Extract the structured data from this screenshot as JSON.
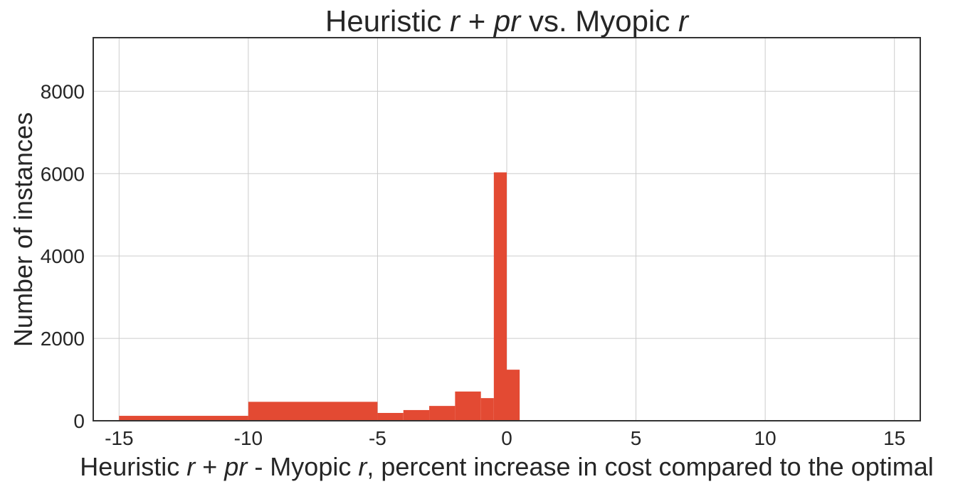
{
  "title": {
    "parts": [
      {
        "text": "Heuristic ",
        "math": false
      },
      {
        "text": "r",
        "math": true
      },
      {
        "text": " + ",
        "math": false
      },
      {
        "text": "pr",
        "math": true
      },
      {
        "text": " vs. Myopic ",
        "math": false
      },
      {
        "text": "r",
        "math": true
      }
    ]
  },
  "xlabel": {
    "parts": [
      {
        "text": "Heuristic ",
        "math": false
      },
      {
        "text": "r",
        "math": true
      },
      {
        "text": " + ",
        "math": false
      },
      {
        "text": "pr",
        "math": true
      },
      {
        "text": " - Myopic ",
        "math": false
      },
      {
        "text": "r",
        "math": true
      },
      {
        "text": ", percent increase in cost compared to the optimal",
        "math": false
      }
    ]
  },
  "ylabel": "Number of instances",
  "colors": {
    "bar": "#e34a33",
    "grid": "#cccccc",
    "frame": "#333333",
    "text": "#262626"
  },
  "chart_data": {
    "type": "bar",
    "grid": true,
    "xlim": [
      -16,
      16
    ],
    "ylim": [
      0,
      9300
    ],
    "xticks": [
      -15,
      -10,
      -5,
      0,
      5,
      10,
      15
    ],
    "xtick_labels": [
      "-15",
      "-10",
      "-5",
      "0",
      "5",
      "10",
      "15"
    ],
    "yticks": [
      0,
      2000,
      4000,
      6000,
      8000
    ],
    "ytick_labels": [
      "0",
      "2000",
      "4000",
      "6000",
      "8000"
    ],
    "bins": [
      {
        "x0": -15,
        "x1": -10,
        "count": 120
      },
      {
        "x0": -10,
        "x1": -5,
        "count": 460
      },
      {
        "x0": -5,
        "x1": -4,
        "count": 190
      },
      {
        "x0": -4,
        "x1": -3,
        "count": 260
      },
      {
        "x0": -3,
        "x1": -2,
        "count": 360
      },
      {
        "x0": -2,
        "x1": -1,
        "count": 710
      },
      {
        "x0": -1,
        "x1": -0.5,
        "count": 550
      },
      {
        "x0": -0.5,
        "x1": 0,
        "count": 6030
      },
      {
        "x0": 0,
        "x1": 0.5,
        "count": 1240
      }
    ]
  }
}
